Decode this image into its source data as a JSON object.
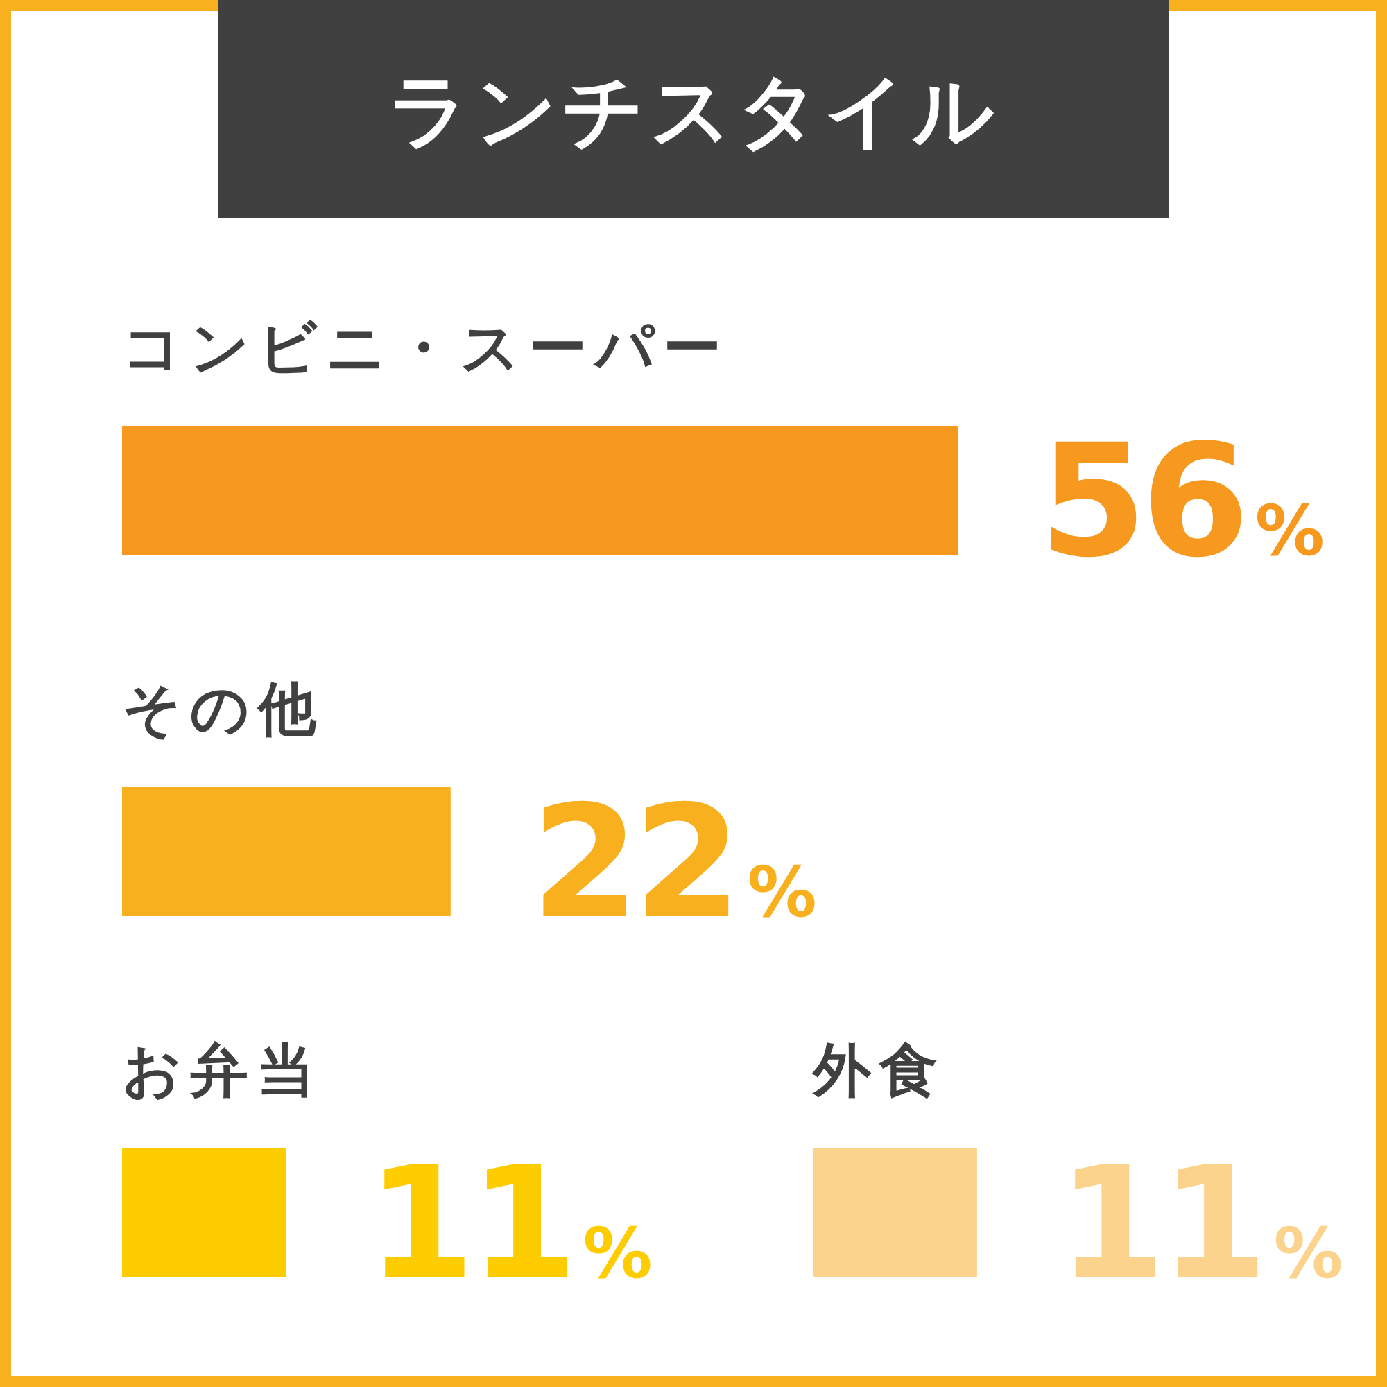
{
  "chart_data": [
    {
      "type": "bar",
      "orientation": "horizontal",
      "title": "ランチスタイル",
      "categories": [
        "コンビニ・スーパー",
        "その他",
        "お弁当"
      ],
      "values": [
        56,
        22,
        11
      ],
      "colors": [
        "#f7991f",
        "#f9b01e",
        "#ffcc00"
      ],
      "value_labels": [
        "56%",
        "22%",
        "11%"
      ]
    },
    {
      "type": "bar",
      "orientation": "horizontal",
      "categories": [
        "外食"
      ],
      "values": [
        11
      ],
      "colors": [
        "#fbd38c"
      ],
      "value_labels": [
        "11%"
      ]
    }
  ]
}
